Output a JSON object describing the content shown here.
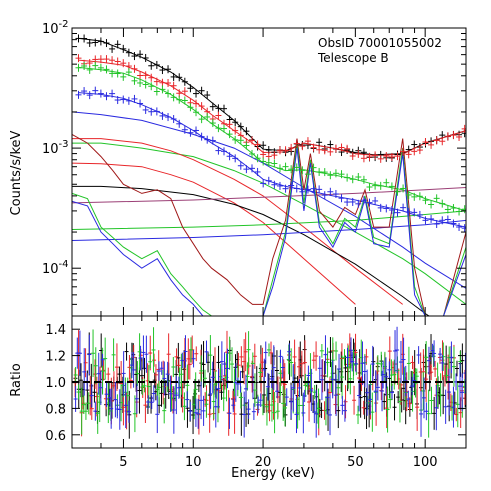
{
  "chart_data": [
    {
      "type": "line",
      "panel": "spectrum",
      "xscale": "log",
      "yscale": "log",
      "xlim": [
        3,
        150
      ],
      "ylim": [
        4e-05,
        0.01
      ],
      "ylabel": "Counts/s/keV",
      "y_ticks": [
        {
          "value": 0.0001,
          "base": "10",
          "exp": "-4"
        },
        {
          "value": 0.001,
          "base": "10",
          "exp": "-3"
        },
        {
          "value": 0.01,
          "base": "10",
          "exp": "-2"
        }
      ],
      "annotations": [
        "ObsID 70001055002",
        "Telescope B"
      ],
      "colors": {
        "black": "#000000",
        "red": "#e8262a",
        "green": "#22c428",
        "blue": "#2a2ae0",
        "maroon": "#a01818",
        "purple": "#9b3f76"
      },
      "series": [
        {
          "color": "#000000",
          "x": [
            3.2,
            4,
            5,
            6,
            8,
            10,
            12,
            15,
            18,
            20,
            25,
            30,
            40,
            50,
            60,
            80,
            100,
            150
          ],
          "y": [
            0.0082,
            0.0078,
            0.0066,
            0.0057,
            0.0043,
            0.0032,
            0.0024,
            0.0017,
            0.0012,
            0.00098,
            0.00095,
            0.0011,
            0.001,
            0.00092,
            0.00088,
            0.0009,
            0.0011,
            0.0014
          ]
        },
        {
          "color": "#e8262a",
          "x": [
            3.2,
            4,
            5,
            6,
            8,
            10,
            12,
            15,
            18,
            20,
            25,
            30,
            40,
            50,
            60,
            80,
            100,
            150
          ],
          "y": [
            0.0054,
            0.0052,
            0.0049,
            0.0043,
            0.0033,
            0.0025,
            0.0019,
            0.0014,
            0.0011,
            0.00092,
            0.00093,
            0.0011,
            0.001,
            0.0009,
            0.00087,
            0.00089,
            0.0011,
            0.0014
          ]
        },
        {
          "color": "#22c428",
          "x": [
            3.2,
            4,
            5,
            6,
            8,
            10,
            12,
            15,
            18,
            20,
            25,
            30,
            40,
            50,
            60,
            80,
            100,
            150
          ],
          "y": [
            0.0047,
            0.0045,
            0.0042,
            0.0037,
            0.0028,
            0.0021,
            0.0016,
            0.0012,
            0.0009,
            0.00075,
            0.00065,
            0.00066,
            0.0006,
            0.00055,
            0.0005,
            0.00045,
            0.00038,
            0.0003
          ]
        },
        {
          "color": "#2a2ae0",
          "x": [
            3.2,
            4,
            5,
            6,
            8,
            10,
            12,
            15,
            18,
            20,
            25,
            30,
            40,
            50,
            60,
            80,
            100,
            150
          ],
          "y": [
            0.0029,
            0.0028,
            0.0026,
            0.0023,
            0.0018,
            0.0014,
            0.0011,
            0.00085,
            0.00065,
            0.00055,
            0.00048,
            0.00045,
            0.0004,
            0.00037,
            0.00034,
            0.0003,
            0.00026,
            0.00022
          ]
        },
        {
          "color": "#2a2ae0",
          "x": [
            3,
            4,
            6,
            10,
            15,
            20,
            30,
            50,
            80,
            100,
            150
          ],
          "y": [
            0.002,
            0.0019,
            0.0017,
            0.0013,
            0.001,
            0.00075,
            0.00047,
            0.00027,
            0.00015,
            0.00011,
            6.8e-05
          ]
        },
        {
          "color": "#22c428",
          "x": [
            3,
            4,
            6,
            10,
            15,
            20,
            30,
            50,
            80,
            100,
            150
          ],
          "y": [
            0.0011,
            0.0011,
            0.001,
            0.00085,
            0.00065,
            0.00051,
            0.00034,
            0.0002,
            0.00012,
            9e-05,
            5e-05
          ]
        },
        {
          "color": "#e8262a",
          "x": [
            3,
            4,
            6,
            8,
            10,
            15,
            20,
            30,
            50,
            80
          ],
          "y": [
            0.0012,
            0.0012,
            0.0011,
            0.00095,
            0.0008,
            0.00055,
            0.0004,
            0.00022,
            0.0001,
            5e-05
          ]
        },
        {
          "color": "#e8262a",
          "x": [
            3,
            4,
            6,
            8,
            10,
            15,
            20,
            30,
            50
          ],
          "y": [
            0.00075,
            0.00074,
            0.0007,
            0.0006,
            0.00052,
            0.00035,
            0.00024,
            0.00012,
            5e-05
          ]
        },
        {
          "color": "#000000",
          "x": [
            3,
            4,
            6,
            10,
            15,
            20,
            30,
            50,
            80,
            100,
            150
          ],
          "y": [
            0.00048,
            0.00048,
            0.00046,
            0.00041,
            0.00034,
            0.00028,
            0.00019,
            0.000108,
            5.8e-05,
            4.2e-05,
            2.5e-05
          ]
        },
        {
          "color": "#9b3f76",
          "x": [
            3,
            10,
            20,
            50,
            100,
            150
          ],
          "y": [
            0.00035,
            0.00037,
            0.00039,
            0.00042,
            0.00045,
            0.00047
          ]
        },
        {
          "color": "#2a2ae0",
          "x": [
            3,
            10,
            20,
            50,
            100,
            150
          ],
          "y": [
            0.00017,
            0.00018,
            0.00019,
            0.00021,
            0.00023,
            0.00025
          ]
        },
        {
          "color": "#22c428",
          "x": [
            3,
            10,
            20,
            50,
            100,
            150
          ],
          "y": [
            0.00021,
            0.00022,
            0.00023,
            0.00025,
            0.00028,
            0.0003
          ]
        },
        {
          "color": "#a01818",
          "x": [
            3,
            3.5,
            4,
            4.5,
            5,
            6,
            7,
            8,
            9,
            10,
            11,
            12,
            14,
            16,
            18,
            20,
            22,
            25,
            28,
            30,
            32,
            35,
            40,
            45,
            50,
            55,
            60,
            70,
            80,
            90,
            100,
            120,
            150
          ],
          "y": [
            0.0013,
            0.0011,
            0.00085,
            0.00065,
            0.0005,
            0.00042,
            0.00045,
            0.00038,
            0.00022,
            0.00016,
            0.00012,
            0.0001,
            8e-05,
            6e-05,
            5e-05,
            5e-05,
            0.00012,
            0.00025,
            0.0012,
            0.00045,
            0.0009,
            0.0003,
            0.00022,
            0.00032,
            0.00028,
            0.00045,
            0.00022,
            0.00022,
            0.0012,
            0.0001,
            4e-05,
            4e-05,
            0.0002
          ]
        },
        {
          "color": "#22c428",
          "x": [
            3,
            3.5,
            4,
            4.5,
            5,
            6,
            7,
            8,
            9,
            10,
            11,
            12,
            14,
            16,
            18,
            20,
            22,
            25,
            28,
            30,
            32,
            35,
            40,
            45,
            50,
            55,
            60,
            70,
            80,
            90,
            100,
            120,
            150
          ],
          "y": [
            0.00042,
            0.00038,
            0.00022,
            0.00018,
            0.00015,
            0.00012,
            0.00014,
            9e-05,
            7e-05,
            5.5e-05,
            4.5e-05,
            4e-05,
            4e-05,
            4e-05,
            4e-05,
            4e-05,
            8e-05,
            0.0002,
            0.0011,
            0.00035,
            0.0008,
            0.00024,
            0.00016,
            0.00026,
            0.00022,
            0.0004,
            0.00018,
            0.00016,
            0.001,
            7e-05,
            4e-05,
            4e-05,
            0.00015
          ]
        },
        {
          "color": "#2a2ae0",
          "x": [
            3,
            3.5,
            4,
            4.5,
            5,
            6,
            7,
            8,
            9,
            10,
            11,
            12,
            14,
            16,
            18,
            20,
            22,
            25,
            28,
            30,
            32,
            35,
            40,
            45,
            50,
            55,
            60,
            70,
            80,
            90,
            100,
            120,
            150
          ],
          "y": [
            0.00036,
            0.00033,
            0.0002,
            0.00016,
            0.00013,
            0.0001,
            0.00012,
            8e-05,
            6e-05,
            5e-05,
            4e-05,
            4e-05,
            4e-05,
            4e-05,
            4e-05,
            4e-05,
            7e-05,
            0.00018,
            0.001,
            0.0003,
            0.00075,
            0.00022,
            0.00015,
            0.00024,
            0.0002,
            0.00038,
            0.00016,
            0.00015,
            0.0009,
            6e-05,
            4e-05,
            4e-05,
            0.00013
          ]
        }
      ]
    },
    {
      "type": "scatter",
      "panel": "ratio",
      "xscale": "log",
      "xlim": [
        3,
        150
      ],
      "ylim": [
        0.5,
        1.5
      ],
      "xlabel": "Energy (keV)",
      "ylabel": "Ratio",
      "x_ticks": [
        {
          "value": 5,
          "label": "5"
        },
        {
          "value": 10,
          "label": "10"
        },
        {
          "value": 20,
          "label": "20"
        },
        {
          "value": 50,
          "label": "50"
        },
        {
          "value": 100,
          "label": "100"
        }
      ],
      "y_ticks": [
        {
          "value": 0.6,
          "label": "0.6"
        },
        {
          "value": 0.8,
          "label": "0.8"
        },
        {
          "value": 1.0,
          "label": "1.0"
        },
        {
          "value": 1.2,
          "label": "1.2"
        },
        {
          "value": 1.4,
          "label": "1.4"
        }
      ],
      "reference_line": 1.0,
      "scatter_range": [
        0.65,
        1.38
      ],
      "series_colors": [
        "#000000",
        "#e8262a",
        "#22c428",
        "#2a2ae0"
      ]
    }
  ]
}
